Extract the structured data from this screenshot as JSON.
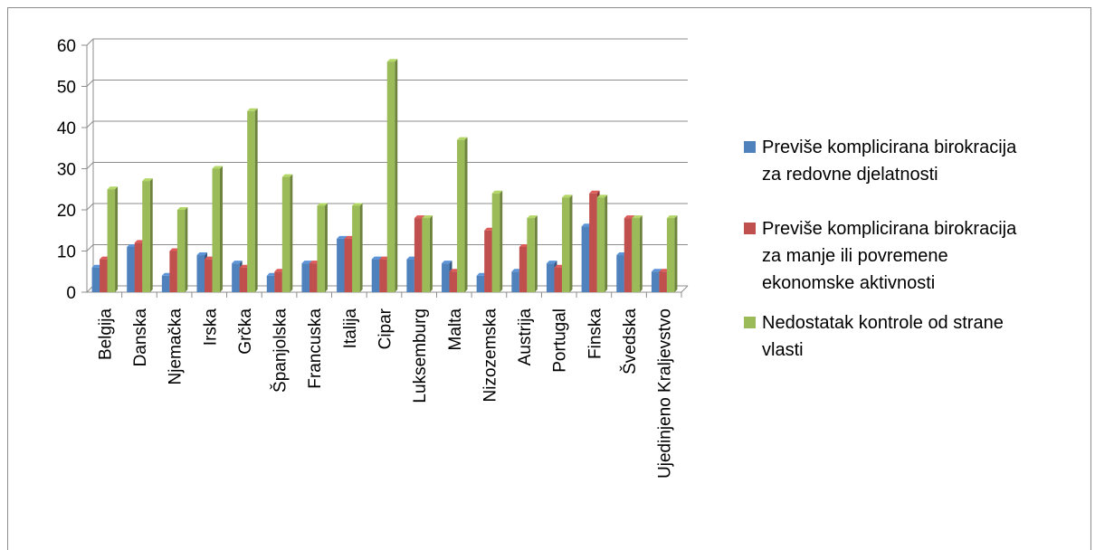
{
  "chart_data": {
    "type": "bar",
    "title": "",
    "xlabel": "",
    "ylabel": "",
    "ylim": [
      0,
      60
    ],
    "yticks": [
      0,
      10,
      20,
      30,
      40,
      50,
      60
    ],
    "grid": true,
    "legend_position": "right",
    "categories": [
      "Belgija",
      "Danska",
      "Njemačka",
      "Irska",
      "Grčka",
      "Španjolska",
      "Francuska",
      "Italija",
      "Cipar",
      "Luksemburg",
      "Malta",
      "Nizozemska",
      "Austrija",
      "Portugal",
      "Finska",
      "Švedska",
      "Ujedinjeno Kraljevstvo"
    ],
    "series": [
      {
        "name": "Previše komplicirana birokracija za redovne djelatnosti",
        "color": "#4f81bd",
        "values": [
          6,
          11,
          4,
          9,
          7,
          4,
          7,
          13,
          8,
          8,
          7,
          4,
          5,
          7,
          16,
          9,
          5
        ]
      },
      {
        "name": "Previše komplicirana birokracija za manje ili povremene ekonomske aktivnosti",
        "color": "#c0504d",
        "values": [
          8,
          12,
          10,
          8,
          6,
          5,
          7,
          13,
          8,
          18,
          5,
          15,
          11,
          6,
          24,
          18,
          5
        ]
      },
      {
        "name": "Nedostatak kontrole od strane vlasti",
        "color": "#9bbb59",
        "values": [
          25,
          27,
          20,
          30,
          44,
          28,
          21,
          21,
          56,
          18,
          37,
          24,
          18,
          23,
          23,
          18,
          18
        ]
      }
    ]
  },
  "legend": {
    "items": [
      {
        "lines": [
          "Previše komplicirana birokracija",
          "za redovne djelatnosti"
        ]
      },
      {
        "lines": [
          "Previše komplicirana birokracija",
          "za manje ili povremene",
          "ekonomske aktivnosti"
        ]
      },
      {
        "lines": [
          "Nedostatak kontrole od strane",
          "vlasti"
        ]
      }
    ]
  }
}
